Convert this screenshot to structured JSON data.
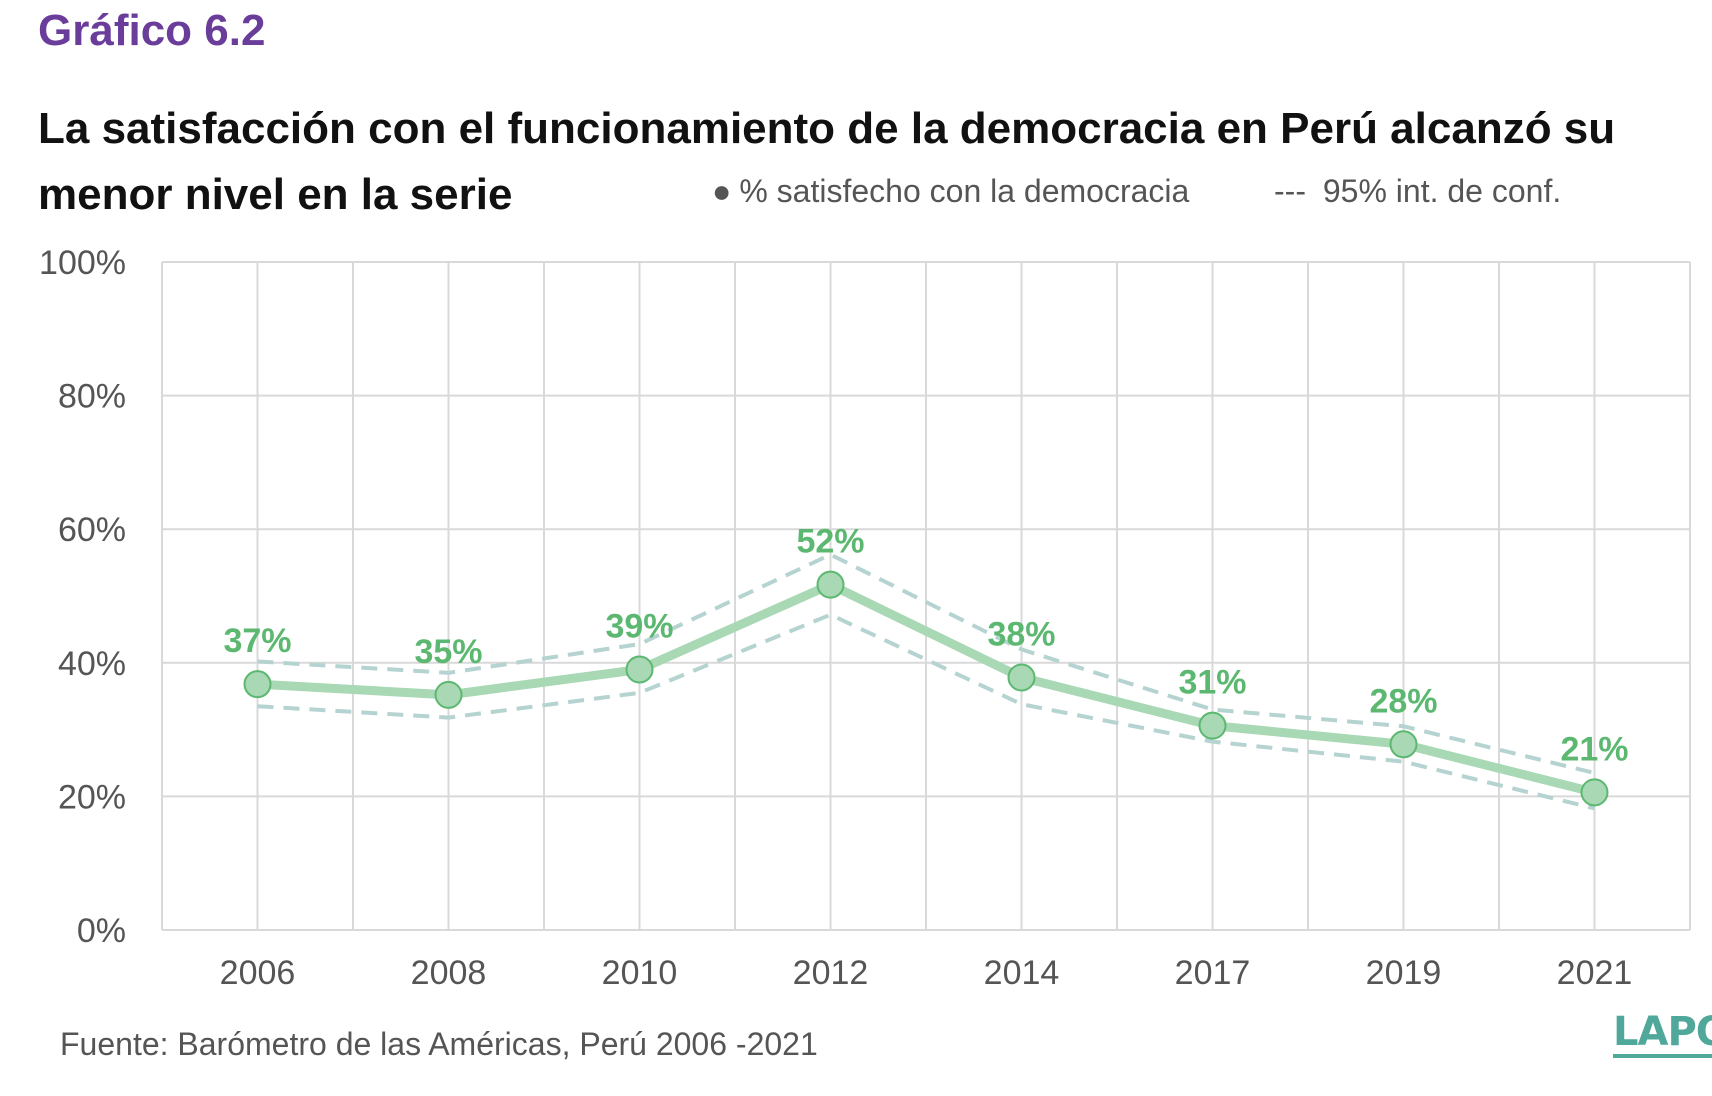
{
  "figure_number": "Gráfico 6.2",
  "title": "La satisfacción con el funcionamiento de la democracia en Perú alcanzó su menor nivel en la serie",
  "legend": {
    "point_glyph": "●",
    "point_label": "% satisfecho con la democracia",
    "ci_glyph": "---",
    "ci_label": "95% int. de conf."
  },
  "source": "Fuente: Barómetro de las Américas, Perú 2006  -2021",
  "logo_text": "LAPOP",
  "colors": {
    "line": "#a8d8b4",
    "marker_fill": "#a8d8b4",
    "marker_stroke": "#5cb870",
    "data_label": "#5cb870",
    "ci": "#b5d3d0",
    "grid": "#d9d9d9",
    "title_accent": "#6a3d9a"
  },
  "chart_data": {
    "type": "line",
    "categories": [
      "2006",
      "2008",
      "2010",
      "2012",
      "2014",
      "2017",
      "2019",
      "2021"
    ],
    "series": [
      {
        "name": "% satisfecho con la democracia",
        "values": [
          36.8,
          35.2,
          39.0,
          51.7,
          37.8,
          30.6,
          27.8,
          20.6
        ],
        "labels": [
          "37%",
          "35%",
          "39%",
          "52%",
          "38%",
          "31%",
          "28%",
          "21%"
        ]
      }
    ],
    "ci_upper": [
      40.2,
      38.5,
      42.8,
      56.2,
      42.0,
      33.0,
      30.5,
      23.5
    ],
    "ci_lower": [
      33.5,
      31.8,
      35.5,
      47.2,
      33.8,
      28.2,
      25.2,
      18.2
    ],
    "ylim": [
      0,
      100
    ],
    "yticks": [
      0,
      20,
      40,
      60,
      80,
      100
    ],
    "ytick_labels": [
      "0%",
      "20%",
      "40%",
      "60%",
      "80%",
      "100%"
    ],
    "grid": true,
    "legend_position": "top-right"
  }
}
